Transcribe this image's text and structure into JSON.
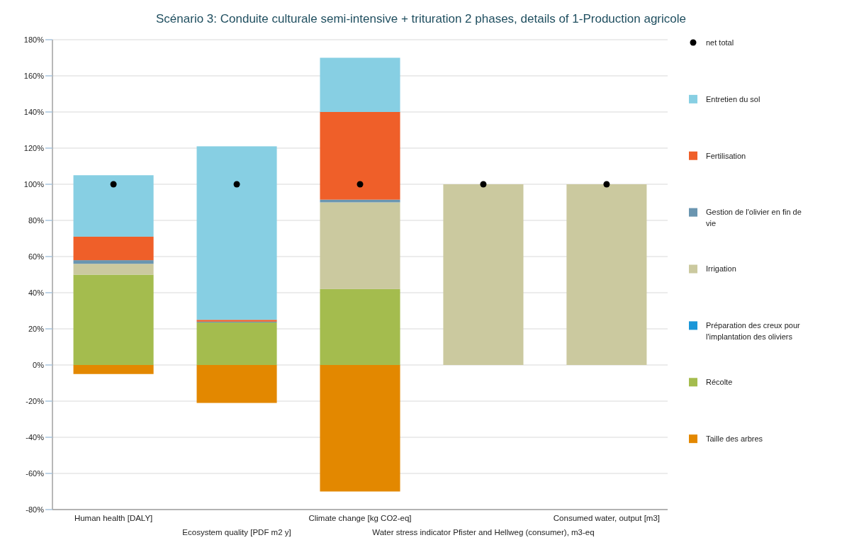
{
  "chart_data": {
    "type": "bar",
    "title": "Scénario 3: Conduite culturale semi-intensive + trituration 2 phases, details of 1-Production agricole",
    "categories": [
      "Human health [DALY]",
      "Ecosystem quality [PDF m2 y]",
      "Climate change [kg CO2-eq]",
      "Water stress indicator Pfister and Hellweg (consumer), m3-eq",
      "Consumed water, output [m3]"
    ],
    "stacked": true,
    "series": [
      {
        "name": "Taille des arbres",
        "color": "#e38800",
        "values": [
          -5,
          -21,
          -70,
          0,
          0
        ]
      },
      {
        "name": "Récolte",
        "color": "#a4bc4e",
        "values": [
          50,
          23.5,
          42,
          0,
          0
        ]
      },
      {
        "name": "Préparation des creux pour l'implantation des oliviers",
        "color": "#1a96d8",
        "values": [
          0,
          0,
          0,
          0,
          0
        ]
      },
      {
        "name": "Irrigation",
        "color": "#cbc99f",
        "values": [
          6,
          0,
          48,
          100,
          100
        ]
      },
      {
        "name": "Gestion de l'olivier en fin de vie",
        "color": "#6a95b0",
        "values": [
          2,
          0.5,
          1.5,
          0,
          0
        ]
      },
      {
        "name": "Fertilisation",
        "color": "#ef5f29",
        "values": [
          13,
          1,
          48.5,
          0,
          0
        ]
      },
      {
        "name": "Entretien du sol",
        "color": "#87cfe3",
        "values": [
          34,
          96,
          30,
          0,
          0
        ]
      },
      {
        "name": "net total",
        "type": "scatter",
        "color": "#000000",
        "marker": "circle",
        "values": [
          100,
          100,
          100,
          100,
          100
        ]
      }
    ],
    "ylim": [
      -80,
      180
    ],
    "yticks": [
      {
        "value": -80,
        "label": "-80%"
      },
      {
        "value": -60,
        "label": "-60%"
      },
      {
        "value": -40,
        "label": "-40%"
      },
      {
        "value": -20,
        "label": "-20%"
      },
      {
        "value": 0,
        "label": "0%"
      },
      {
        "value": 20,
        "label": "20%"
      },
      {
        "value": 40,
        "label": "40%"
      },
      {
        "value": 60,
        "label": "60%"
      },
      {
        "value": 80,
        "label": "80%"
      },
      {
        "value": 100,
        "label": "100%"
      },
      {
        "value": 120,
        "label": "120%"
      },
      {
        "value": 140,
        "label": "140%"
      },
      {
        "value": 160,
        "label": "160%"
      },
      {
        "value": 180,
        "label": "180%"
      }
    ],
    "grid": "y",
    "legend": "right"
  }
}
